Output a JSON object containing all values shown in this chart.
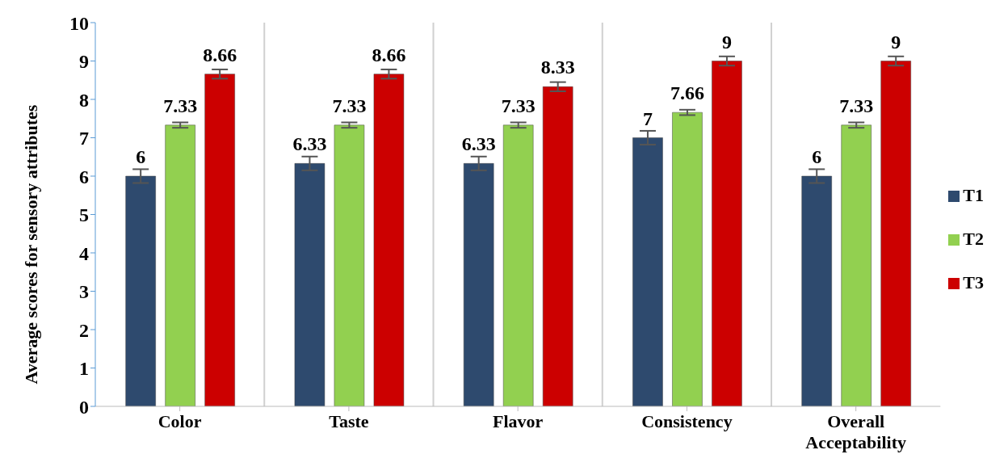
{
  "chart_data": {
    "type": "bar",
    "ylabel": "Average scores for sensory attributes",
    "categories": [
      "Color",
      "Taste",
      "Flavor",
      "Consistency",
      "Overall Acceptability"
    ],
    "series": [
      {
        "name": "T1",
        "color": "#2e4a6e",
        "values": [
          6,
          6.33,
          6.33,
          7,
          6
        ],
        "errors": [
          0.18,
          0.18,
          0.18,
          0.18,
          0.18
        ]
      },
      {
        "name": "T2",
        "color": "#92d050",
        "values": [
          7.33,
          7.33,
          7.33,
          7.66,
          7.33
        ],
        "errors": [
          0.07,
          0.07,
          0.07,
          0.07,
          0.07
        ]
      },
      {
        "name": "T3",
        "color": "#cc0000",
        "values": [
          8.66,
          8.66,
          8.33,
          9,
          9
        ],
        "errors": [
          0.12,
          0.12,
          0.12,
          0.12,
          0.12
        ]
      }
    ],
    "ylim": [
      0,
      10
    ],
    "yticks": [
      0,
      1,
      2,
      3,
      4,
      5,
      6,
      7,
      8,
      9,
      10
    ],
    "grid": "x",
    "legend": "right",
    "data_labels": true
  }
}
